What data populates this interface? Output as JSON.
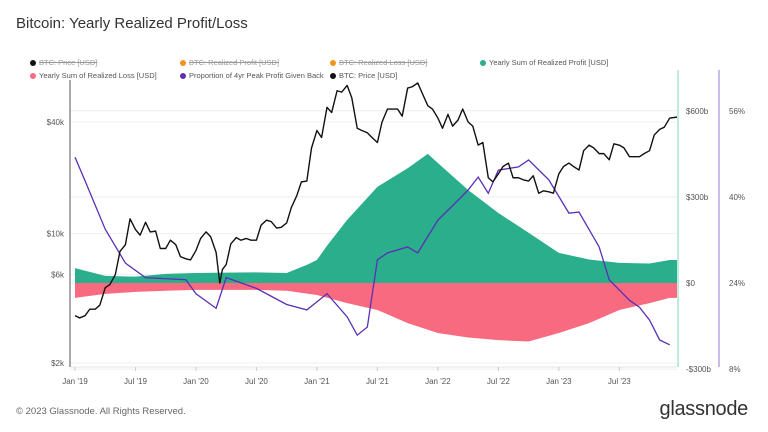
{
  "title": "Bitcoin: Yearly Realized Profit/Loss",
  "footer": "© 2023 Glassnode. All Rights Reserved.",
  "logo": "glassnode",
  "legend": [
    {
      "label": "BTC: Price [USD]",
      "color": "#111111",
      "enabled": false
    },
    {
      "label": "BTC: Realized Profit [USD]",
      "color": "#f7931a",
      "enabled": false
    },
    {
      "label": "BTC: Realized Loss [USD]",
      "color": "#f7931a",
      "enabled": false
    },
    {
      "label": "Yearly Sum of Realized Profit [USD]",
      "color": "#2aae8b",
      "enabled": true
    },
    {
      "label": "Yearly Sum of Realized Loss [USD]",
      "color": "#f76a80",
      "enabled": true
    },
    {
      "label": "Proportion of 4yr Peak Profit Given Back",
      "color": "#5b2fb5",
      "enabled": true
    },
    {
      "label": "BTC: Price [USD]",
      "color": "#111111",
      "enabled": true
    }
  ],
  "chart_data": {
    "type": "line",
    "title": "Bitcoin: Yearly Realized Profit/Loss",
    "x_ticks": [
      "Jan '19",
      "Jul '19",
      "Jan '20",
      "Jul '20",
      "Jan '21",
      "Jul '21",
      "Jan '22",
      "Jul '22",
      "Jan '23",
      "Jul '23"
    ],
    "x_range": [
      "2019-01-01",
      "2023-12-28"
    ],
    "axes": {
      "price": {
        "scale": "log",
        "ticks": [
          "$2k",
          "$6k",
          "$10k",
          "$40k"
        ],
        "tick_values": [
          2000,
          6000,
          10000,
          40000
        ],
        "range": [
          1900,
          95000
        ]
      },
      "usd": {
        "scale": "linear",
        "ticks": [
          "-$300b",
          "$0",
          "$300b",
          "$600b"
        ],
        "tick_values": [
          -300,
          0,
          300,
          600
        ],
        "unit": "billion USD",
        "range": [
          -300,
          600
        ]
      },
      "percent": {
        "scale": "linear",
        "ticks": [
          "8%",
          "24%",
          "40%",
          "56%"
        ],
        "tick_values": [
          8,
          24,
          40,
          56
        ],
        "range": [
          8,
          56
        ]
      }
    },
    "grid": true,
    "legend_position": "top",
    "series": [
      {
        "name": "Yearly Sum of Realized Profit [USD]",
        "type": "area",
        "axis": "usd",
        "color": "#2aae8b",
        "x": [
          "2019-01",
          "2019-04",
          "2019-07",
          "2019-10",
          "2020-01",
          "2020-04",
          "2020-07",
          "2020-10",
          "2020-12",
          "2021-01",
          "2021-02",
          "2021-04",
          "2021-07",
          "2021-10",
          "2021-12",
          "2022-01",
          "2022-04",
          "2022-07",
          "2022-10",
          "2023-01",
          "2023-04",
          "2023-07",
          "2023-10",
          "2023-12"
        ],
        "values": [
          52,
          25,
          22,
          32,
          35,
          36,
          37,
          35,
          63,
          80,
          130,
          220,
          335,
          400,
          450,
          418,
          324,
          244,
          175,
          105,
          82,
          70,
          68,
          80
        ]
      },
      {
        "name": "Yearly Sum of Realized Loss [USD]",
        "type": "area",
        "axis": "usd",
        "color": "#f76a80",
        "x": [
          "2019-01",
          "2019-04",
          "2019-07",
          "2019-10",
          "2020-01",
          "2020-04",
          "2020-07",
          "2020-10",
          "2021-01",
          "2021-04",
          "2021-07",
          "2021-10",
          "2022-01",
          "2022-04",
          "2022-07",
          "2022-10",
          "2023-01",
          "2023-04",
          "2023-07",
          "2023-10",
          "2023-12"
        ],
        "values": [
          -52,
          -38,
          -31,
          -27,
          -24,
          -24,
          -24,
          -27,
          -42,
          -70,
          -94,
          -140,
          -174,
          -190,
          -199,
          -204,
          -174,
          -140,
          -94,
          -70,
          -52
        ]
      },
      {
        "name": "Proportion of 4yr Peak Profit Given Back",
        "type": "line",
        "axis": "percent",
        "color": "#5b2fb5",
        "x": [
          "2019-01",
          "2019-02",
          "2019-04",
          "2019-06",
          "2019-08",
          "2019-12",
          "2020-01",
          "2020-03",
          "2020-04",
          "2020-07",
          "2020-10",
          "2020-12",
          "2021-02",
          "2021-04",
          "2021-05",
          "2021-06",
          "2021-07",
          "2021-08",
          "2021-10",
          "2021-11",
          "2022-01",
          "2022-03",
          "2022-04",
          "2022-05",
          "2022-06",
          "2022-07",
          "2022-09",
          "2022-10",
          "2022-12",
          "2023-02",
          "2023-03",
          "2023-05",
          "2023-06",
          "2023-08",
          "2023-09",
          "2023-10",
          "2023-11",
          "2023-12"
        ],
        "values": [
          47.4,
          43,
          34,
          27.7,
          25,
          24.6,
          22,
          19.3,
          25,
          23,
          20,
          19,
          22,
          17.7,
          14.3,
          15.8,
          28.3,
          29.6,
          30.7,
          29.6,
          35.7,
          39.4,
          41.3,
          43.7,
          40.7,
          45,
          45.6,
          46.9,
          43.2,
          37,
          37.2,
          30.7,
          24.6,
          20.8,
          19.5,
          17.1,
          13.4,
          12.5
        ]
      },
      {
        "name": "BTC: Price [USD]",
        "type": "line",
        "axis": "price",
        "color": "#111111",
        "x": [
          "2019-01-01",
          "2019-01-15",
          "2019-02-01",
          "2019-02-15",
          "2019-03-01",
          "2019-03-15",
          "2019-04-01",
          "2019-04-15",
          "2019-05-01",
          "2019-05-15",
          "2019-06-01",
          "2019-06-15",
          "2019-07-01",
          "2019-07-15",
          "2019-08-01",
          "2019-08-15",
          "2019-09-01",
          "2019-09-15",
          "2019-10-01",
          "2019-10-15",
          "2019-11-01",
          "2019-11-15",
          "2019-12-01",
          "2019-12-15",
          "2020-01-01",
          "2020-01-15",
          "2020-02-01",
          "2020-02-15",
          "2020-03-01",
          "2020-03-12",
          "2020-03-20",
          "2020-04-01",
          "2020-04-15",
          "2020-05-01",
          "2020-05-15",
          "2020-06-01",
          "2020-06-15",
          "2020-07-01",
          "2020-07-15",
          "2020-08-01",
          "2020-08-15",
          "2020-09-01",
          "2020-09-15",
          "2020-10-01",
          "2020-10-15",
          "2020-11-01",
          "2020-11-15",
          "2020-12-01",
          "2020-12-15",
          "2021-01-01",
          "2021-01-15",
          "2021-02-01",
          "2021-02-15",
          "2021-03-01",
          "2021-03-15",
          "2021-04-01",
          "2021-04-15",
          "2021-05-01",
          "2021-05-15",
          "2021-06-01",
          "2021-06-15",
          "2021-07-01",
          "2021-07-15",
          "2021-08-01",
          "2021-08-15",
          "2021-09-01",
          "2021-09-15",
          "2021-10-01",
          "2021-10-15",
          "2021-11-01",
          "2021-11-15",
          "2021-12-01",
          "2021-12-15",
          "2022-01-01",
          "2022-01-15",
          "2022-02-01",
          "2022-02-15",
          "2022-03-01",
          "2022-03-15",
          "2022-04-01",
          "2022-04-15",
          "2022-05-01",
          "2022-05-15",
          "2022-06-01",
          "2022-06-15",
          "2022-07-01",
          "2022-07-15",
          "2022-08-01",
          "2022-08-15",
          "2022-09-01",
          "2022-09-15",
          "2022-10-01",
          "2022-10-15",
          "2022-11-01",
          "2022-11-15",
          "2022-12-01",
          "2022-12-15",
          "2023-01-01",
          "2023-01-15",
          "2023-02-01",
          "2023-02-15",
          "2023-03-01",
          "2023-03-15",
          "2023-04-01",
          "2023-04-15",
          "2023-05-01",
          "2023-05-15",
          "2023-06-01",
          "2023-06-15",
          "2023-07-01",
          "2023-07-15",
          "2023-08-01",
          "2023-08-15",
          "2023-09-01",
          "2023-09-15",
          "2023-10-01",
          "2023-10-15",
          "2023-11-01",
          "2023-11-15",
          "2023-12-01",
          "2023-12-28"
        ],
        "values": [
          3600,
          3500,
          3600,
          3900,
          3900,
          4100,
          5100,
          5300,
          6000,
          8000,
          8700,
          12000,
          10500,
          9800,
          11500,
          10200,
          10300,
          8300,
          8300,
          9200,
          8700,
          7500,
          7300,
          7200,
          8100,
          9400,
          10200,
          9600,
          7900,
          5400,
          6400,
          6800,
          8800,
          9500,
          9200,
          9400,
          9200,
          9200,
          11100,
          11800,
          11600,
          10700,
          10800,
          11400,
          13800,
          16000,
          19000,
          19200,
          28900,
          36000,
          33000,
          48000,
          45000,
          59000,
          58000,
          63000,
          54000,
          37000,
          36000,
          35000,
          33000,
          31000,
          40000,
          47000,
          47000,
          47000,
          43000,
          61000,
          62000,
          65000,
          57000,
          49000,
          47000,
          42000,
          37000,
          44000,
          38000,
          41000,
          47000,
          40000,
          38000,
          30000,
          31000,
          20000,
          19000,
          21000,
          23000,
          24000,
          20000,
          20000,
          19500,
          19200,
          20500,
          16500,
          17000,
          16800,
          16500,
          21000,
          23000,
          24000,
          23000,
          22000,
          28000,
          30000,
          29000,
          27000,
          27000,
          25000,
          30500,
          30000,
          29000,
          26000,
          26000,
          26000,
          27000,
          28000,
          34000,
          36500,
          37500,
          42000,
          42500
        ]
      }
    ]
  }
}
